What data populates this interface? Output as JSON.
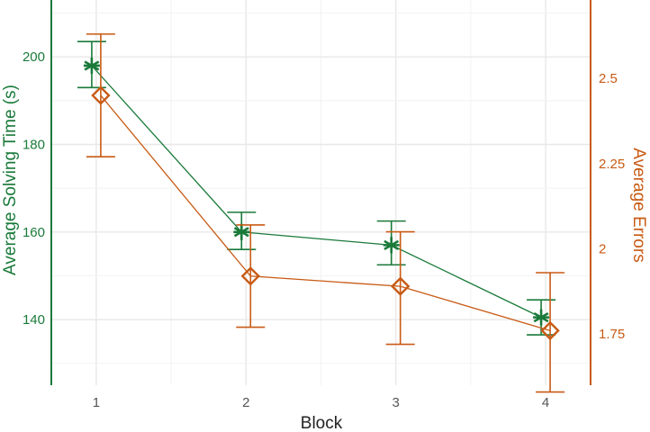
{
  "chart_data": {
    "type": "line",
    "xlabel": "Block",
    "ylabel_left": "Average Solving Time (s)",
    "ylabel_right": "Average Errors",
    "x": [
      1,
      2,
      3,
      4
    ],
    "x_tick_labels": [
      "1",
      "2",
      "3",
      "4"
    ],
    "xlim": [
      0.7,
      4.3
    ],
    "ylim_left": [
      125,
      213
    ],
    "ylim_right": [
      1.6,
      2.73
    ],
    "y_left_ticks": [
      140,
      160,
      180,
      200
    ],
    "y_left_tick_labels": [
      "140",
      "160",
      "180",
      "200"
    ],
    "y_right_ticks": [
      1.75,
      2.0,
      2.25,
      2.5
    ],
    "y_right_tick_labels": [
      "1.75",
      "2",
      "2.25",
      "2.5"
    ],
    "grid": true,
    "series": [
      {
        "axis": "left",
        "marker": "asterisk",
        "color": "#1a7a3a",
        "values": [
          198,
          160,
          157,
          140.5
        ],
        "error_low": [
          193,
          156,
          152.5,
          136.5
        ],
        "error_high": [
          203.5,
          164.5,
          162.5,
          144.5
        ]
      },
      {
        "axis": "right",
        "marker": "diamond",
        "color": "#c85a14",
        "values": [
          2.45,
          1.92,
          1.89,
          1.76
        ],
        "error_low": [
          2.27,
          1.77,
          1.72,
          1.58
        ],
        "error_high": [
          2.63,
          2.07,
          2.05,
          1.93
        ]
      }
    ]
  }
}
